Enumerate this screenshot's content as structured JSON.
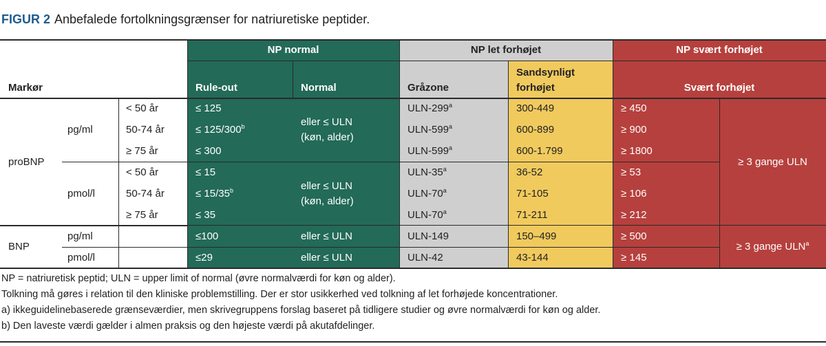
{
  "figure": {
    "label": "FIGUR 2",
    "title": "Anbefalede fortolkningsgrænser for natriuretiske peptider."
  },
  "table": {
    "header": {
      "marker": "Markør",
      "groups": [
        "NP normal",
        "NP let forhøjet",
        "NP svært forhøjet"
      ],
      "columns": [
        "Rule-out",
        "Normal",
        "Gråzone",
        "Sandsynligt forhøjet",
        "Svært forhøjet"
      ]
    },
    "markers": [
      {
        "name": "proBNP",
        "severe": "≥ 3 gange ULN",
        "units": [
          {
            "unit": "pg/ml",
            "normal": "eller ≤ ULN (køn, alder)",
            "rows": [
              {
                "age": "< 50 år",
                "rule_out": "≤ 125",
                "grey_zone": {
                  "text": "ULN-299",
                  "sup": "a"
                },
                "likely": "300-449",
                "severe": "≥ 450"
              },
              {
                "age": "50-74 år",
                "rule_out": {
                  "text": "≤ 125/300",
                  "sup": "b"
                },
                "grey_zone": {
                  "text": "ULN-599",
                  "sup": "a"
                },
                "likely": "600-899",
                "severe": "≥ 900"
              },
              {
                "age": "≥ 75 år",
                "rule_out": "≤ 300",
                "grey_zone": {
                  "text": "ULN-599",
                  "sup": "a"
                },
                "likely": "600-1.799",
                "severe": "≥ 1800"
              }
            ]
          },
          {
            "unit": "pmol/l",
            "normal": "eller ≤ ULN (køn, alder)",
            "rows": [
              {
                "age": "< 50 år",
                "rule_out": "≤ 15",
                "grey_zone": {
                  "text": "ULN-35",
                  "sup": "a"
                },
                "likely": "36-52",
                "severe": "≥ 53"
              },
              {
                "age": "50-74 år",
                "rule_out": {
                  "text": "≤ 15/35",
                  "sup": "b"
                },
                "grey_zone": {
                  "text": "ULN-70",
                  "sup": "a"
                },
                "likely": "71-105",
                "severe": "≥ 106"
              },
              {
                "age": "≥ 75 år",
                "rule_out": "≤ 35",
                "grey_zone": {
                  "text": "ULN-70",
                  "sup": "a"
                },
                "likely": "71-211",
                "severe": "≥ 212"
              }
            ]
          }
        ]
      },
      {
        "name": "BNP",
        "severe": {
          "text": "≥ 3 gange ULN",
          "sup": "a"
        },
        "units": [
          {
            "unit": "pg/ml",
            "normal": "eller ≤ ULN",
            "rows": [
              {
                "rule_out": "≤100",
                "grey_zone": "ULN-149",
                "likely": "150–499",
                "severe": "≥ 500"
              }
            ]
          },
          {
            "unit": "pmol/l",
            "normal": "eller ≤ ULN",
            "rows": [
              {
                "rule_out": "≤29",
                "grey_zone": "ULN-42",
                "likely": "43-144",
                "severe": "≥ 145"
              }
            ]
          }
        ]
      }
    ]
  },
  "notes": [
    "NP = natriuretisk peptid; ULN = upper limit of normal (øvre normalværdi for køn og alder).",
    "Tolkning må gøres i relation til den kliniske problemstilling. Der er stor usikkerhed ved tolkning af let forhøjede koncentrationer.",
    "a) ikkeguidelinebaserede grænseværdier, men skrivegruppens forslag baseret på tidligere studier og øvre normalværdi for køn og alder.",
    "b) Den laveste værdi gælder i almen praksis og den højeste værdi på akutafdelinger."
  ]
}
